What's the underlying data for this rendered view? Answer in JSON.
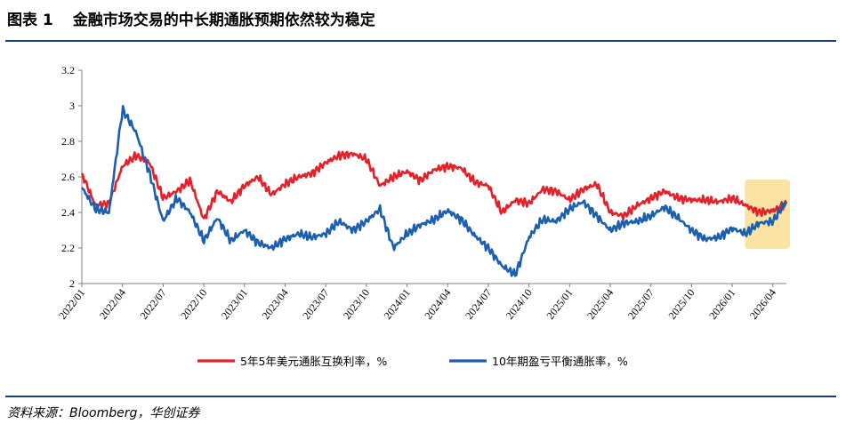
{
  "header": {
    "figure_label": "图表 1",
    "title": "金融市场交易的中长期通胀预期依然较为稳定"
  },
  "footer": {
    "source": "资料来源：Bloomberg，华创证券"
  },
  "chart_data": {
    "type": "line",
    "title": "金融市场交易的中长期通胀预期依然较为稳定",
    "xlabel": "",
    "ylabel": "",
    "ylim": [
      2,
      3.2
    ],
    "yticks": [
      "2",
      "2.2",
      "2.4",
      "2.6",
      "2.8",
      "3",
      "3.2"
    ],
    "x_ticks": [
      "2022/01",
      "2022/04",
      "2022/07",
      "2022/10",
      "2023/01",
      "2023/04",
      "2023/07",
      "2023/10",
      "2024/01",
      "2024/04",
      "2024/07",
      "2024/10",
      "2025/01",
      "2025/04",
      "2025/07",
      "2025/10",
      "2026/01",
      "2026/04"
    ],
    "grid": false,
    "legend_position": "bottom",
    "highlight": {
      "from": "2026/02",
      "to": "2026/05",
      "color": "#fbe3a3"
    },
    "colors": {
      "series1": "#e3212a",
      "series2": "#1b5fae"
    },
    "x": [
      "2022/01",
      "2022/02",
      "2022/03",
      "2022/04",
      "2022/05",
      "2022/06",
      "2022/07",
      "2022/08",
      "2022/09",
      "2022/10",
      "2022/11",
      "2022/12",
      "2023/01",
      "2023/02",
      "2023/03",
      "2023/04",
      "2023/05",
      "2023/06",
      "2023/07",
      "2023/08",
      "2023/09",
      "2023/10",
      "2023/11",
      "2023/12",
      "2024/01",
      "2024/02",
      "2024/03",
      "2024/04",
      "2024/05",
      "2024/06",
      "2024/07",
      "2024/08",
      "2024/09",
      "2024/10",
      "2024/11",
      "2024/12",
      "2025/01",
      "2025/02",
      "2025/03",
      "2025/04",
      "2025/05",
      "2025/06",
      "2025/07",
      "2025/08",
      "2025/09",
      "2025/10",
      "2025/11",
      "2025/12",
      "2026/01",
      "2026/02",
      "2026/03",
      "2026/04",
      "2026/05"
    ],
    "series": [
      {
        "name": "5年5年美元通胀互换利率，%",
        "values": [
          2.62,
          2.44,
          2.45,
          2.66,
          2.72,
          2.68,
          2.48,
          2.52,
          2.58,
          2.36,
          2.52,
          2.46,
          2.55,
          2.6,
          2.5,
          2.56,
          2.6,
          2.62,
          2.68,
          2.72,
          2.73,
          2.7,
          2.55,
          2.6,
          2.63,
          2.58,
          2.64,
          2.66,
          2.65,
          2.57,
          2.55,
          2.4,
          2.47,
          2.45,
          2.53,
          2.52,
          2.47,
          2.53,
          2.56,
          2.4,
          2.38,
          2.44,
          2.48,
          2.52,
          2.48,
          2.47,
          2.47,
          2.46,
          2.48,
          2.44,
          2.4,
          2.41,
          2.45
        ]
      },
      {
        "name": "10年期盈亏平衡通胀率，%",
        "values": [
          2.54,
          2.42,
          2.4,
          2.98,
          2.85,
          2.62,
          2.35,
          2.48,
          2.4,
          2.24,
          2.37,
          2.24,
          2.3,
          2.23,
          2.2,
          2.25,
          2.28,
          2.26,
          2.28,
          2.35,
          2.3,
          2.35,
          2.42,
          2.2,
          2.28,
          2.33,
          2.36,
          2.41,
          2.36,
          2.27,
          2.2,
          2.1,
          2.05,
          2.26,
          2.36,
          2.35,
          2.42,
          2.46,
          2.38,
          2.3,
          2.34,
          2.35,
          2.38,
          2.43,
          2.37,
          2.3,
          2.25,
          2.26,
          2.31,
          2.28,
          2.34,
          2.35,
          2.46
        ]
      }
    ]
  }
}
